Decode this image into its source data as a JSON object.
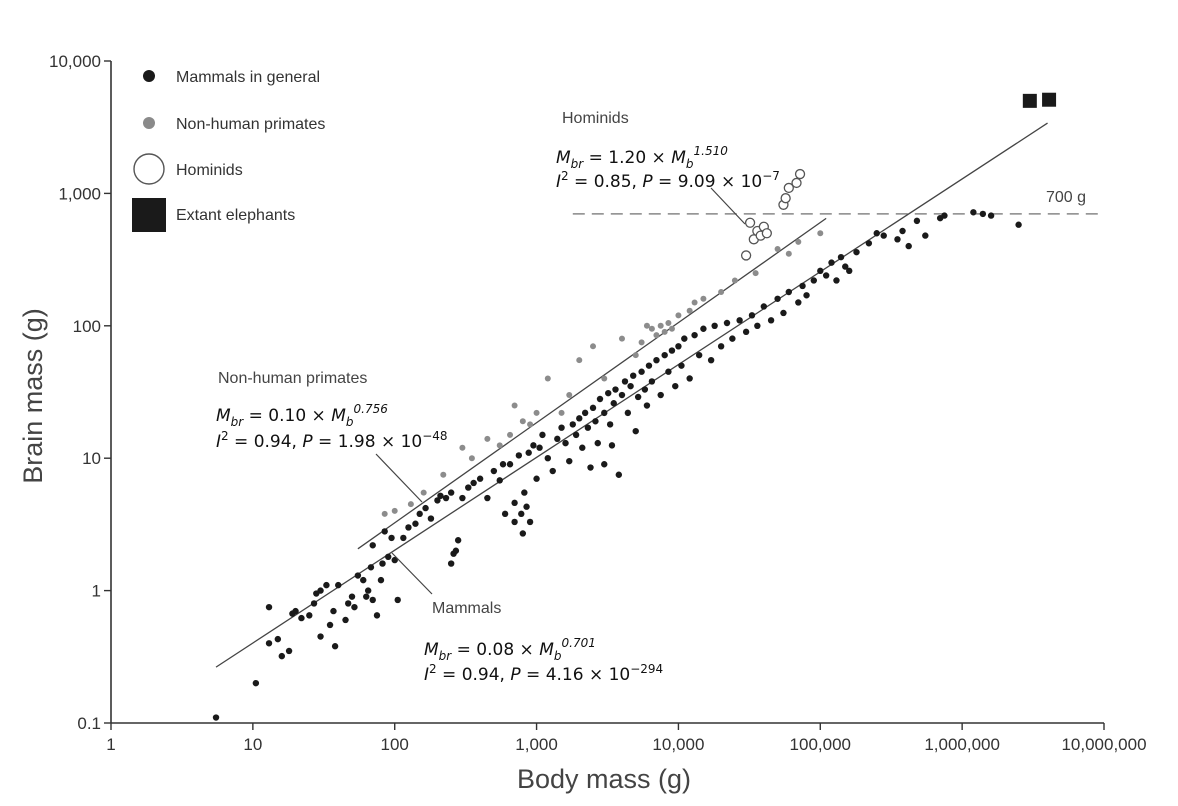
{
  "chart_data": {
    "type": "scatter",
    "x_scale": "log",
    "y_scale": "log",
    "xlabel": "Body mass (g)",
    "ylabel": "Brain mass (g)",
    "xlim": [
      1,
      10000000
    ],
    "ylim": [
      0.1,
      10000
    ],
    "x_ticks": [
      1,
      10,
      100,
      1000,
      10000,
      100000,
      1000000,
      10000000
    ],
    "x_tick_labels": [
      "1",
      "10",
      "100",
      "1,000",
      "10,000",
      "100,000",
      "1,000,000",
      "10,000,000"
    ],
    "y_ticks": [
      0.1,
      1,
      10,
      100,
      1000,
      10000
    ],
    "y_tick_labels": [
      "0.1",
      "1",
      "10",
      "100",
      "1,000",
      "10,000"
    ],
    "legend": [
      {
        "key": "mammals",
        "label": "Mammals in general",
        "marker": "filled-circle",
        "color": "#1a1a1a"
      },
      {
        "key": "primates",
        "label": "Non-human primates",
        "marker": "filled-circle",
        "color": "#8a8a8a"
      },
      {
        "key": "hominids",
        "label": "Hominids",
        "marker": "open-circle",
        "color": "#555555"
      },
      {
        "key": "elephants",
        "label": "Extant elephants",
        "marker": "filled-square",
        "color": "#1a1a1a"
      }
    ],
    "reference_line": {
      "y": 700,
      "label": "700 g",
      "style": "dashed",
      "x_range": [
        1800,
        10000000
      ]
    },
    "fits": [
      {
        "name": "Mammals",
        "a": 0.08,
        "b": 0.701,
        "x_range": [
          5.5,
          4000000
        ]
      },
      {
        "name": "Non-human primates",
        "a": 0.1,
        "b": 0.756,
        "x_range": [
          55,
          110000
        ]
      },
      {
        "name": "Hominids",
        "a": 1.2,
        "b": 1.51,
        "x_range": [
          30000,
          75000
        ]
      }
    ],
    "annotations": {
      "hominids": {
        "title": "Hominids",
        "eq_prefix": "M",
        "eq_sub": "br",
        "eq_coef": " = 1.20 × ",
        "eq_var": "M",
        "eq_var_sub": "b",
        "eq_exp": "1.510",
        "stat_i": "I",
        "stat_i_exp": "2",
        "stat_rest": " = 0.85, ",
        "stat_p": "P",
        "stat_p_val": " = 9.09 × 10",
        "stat_p_exp": "−7"
      },
      "primates": {
        "title": "Non-human primates",
        "eq_prefix": "M",
        "eq_sub": "br",
        "eq_coef": " = 0.10 × ",
        "eq_var": "M",
        "eq_var_sub": "b",
        "eq_exp": "0.756",
        "stat_i": "I",
        "stat_i_exp": "2",
        "stat_rest": " = 0.94, ",
        "stat_p": "P",
        "stat_p_val": " = 1.98 × 10",
        "stat_p_exp": "−48"
      },
      "mammals": {
        "title": "Mammals",
        "eq_prefix": "M",
        "eq_sub": "br",
        "eq_coef": " = 0.08 × ",
        "eq_var": "M",
        "eq_var_sub": "b",
        "eq_exp": "0.701",
        "stat_i": "I",
        "stat_i_exp": "2",
        "stat_rest": " = 0.94, ",
        "stat_p": "P",
        "stat_p_val": " = 4.16 × 10",
        "stat_p_exp": "−294"
      }
    },
    "series": [
      {
        "name": "Mammals in general",
        "points": [
          [
            5.5,
            0.11
          ],
          [
            10.5,
            0.2
          ],
          [
            13,
            0.75
          ],
          [
            13,
            0.4
          ],
          [
            15,
            0.43
          ],
          [
            16,
            0.32
          ],
          [
            18,
            0.35
          ],
          [
            19,
            0.67
          ],
          [
            20,
            0.7
          ],
          [
            22,
            0.62
          ],
          [
            25,
            0.65
          ],
          [
            27,
            0.8
          ],
          [
            28,
            0.95
          ],
          [
            30,
            0.45
          ],
          [
            30,
            1.0
          ],
          [
            33,
            1.1
          ],
          [
            35,
            0.55
          ],
          [
            37,
            0.7
          ],
          [
            38,
            0.38
          ],
          [
            40,
            1.1
          ],
          [
            45,
            0.6
          ],
          [
            47,
            0.8
          ],
          [
            50,
            0.9
          ],
          [
            52,
            0.75
          ],
          [
            55,
            1.3
          ],
          [
            60,
            1.2
          ],
          [
            63,
            0.9
          ],
          [
            65,
            1.0
          ],
          [
            68,
            1.5
          ],
          [
            70,
            0.85
          ],
          [
            70,
            2.2
          ],
          [
            75,
            0.65
          ],
          [
            80,
            1.2
          ],
          [
            82,
            1.6
          ],
          [
            85,
            2.8
          ],
          [
            90,
            1.8
          ],
          [
            95,
            2.5
          ],
          [
            100,
            1.7
          ],
          [
            105,
            0.85
          ],
          [
            115,
            2.5
          ],
          [
            125,
            3.0
          ],
          [
            140,
            3.2
          ],
          [
            150,
            3.8
          ],
          [
            165,
            4.2
          ],
          [
            180,
            3.5
          ],
          [
            200,
            4.8
          ],
          [
            210,
            5.2
          ],
          [
            230,
            5.0
          ],
          [
            250,
            1.6
          ],
          [
            250,
            5.5
          ],
          [
            260,
            1.9
          ],
          [
            270,
            2.0
          ],
          [
            280,
            2.4
          ],
          [
            300,
            5.0
          ],
          [
            330,
            6.0
          ],
          [
            360,
            6.5
          ],
          [
            400,
            7.0
          ],
          [
            450,
            5.0
          ],
          [
            500,
            8.0
          ],
          [
            550,
            6.8
          ],
          [
            580,
            9.0
          ],
          [
            600,
            3.8
          ],
          [
            650,
            9.0
          ],
          [
            700,
            3.3
          ],
          [
            700,
            4.6
          ],
          [
            750,
            10.5
          ],
          [
            780,
            3.8
          ],
          [
            800,
            2.7
          ],
          [
            820,
            5.5
          ],
          [
            850,
            4.3
          ],
          [
            880,
            11.0
          ],
          [
            900,
            3.3
          ],
          [
            950,
            12.5
          ],
          [
            1000,
            7.0
          ],
          [
            1050,
            12.0
          ],
          [
            1100,
            15.0
          ],
          [
            1200,
            10.0
          ],
          [
            1300,
            8.0
          ],
          [
            1400,
            14.0
          ],
          [
            1500,
            17.0
          ],
          [
            1600,
            13.0
          ],
          [
            1700,
            9.5
          ],
          [
            1800,
            18.0
          ],
          [
            1900,
            15.0
          ],
          [
            2000,
            20.0
          ],
          [
            2100,
            12.0
          ],
          [
            2200,
            22.0
          ],
          [
            2300,
            17.0
          ],
          [
            2400,
            8.5
          ],
          [
            2500,
            24.0
          ],
          [
            2600,
            19.0
          ],
          [
            2700,
            13.0
          ],
          [
            2800,
            28.0
          ],
          [
            3000,
            22.0
          ],
          [
            3000,
            9.0
          ],
          [
            3200,
            31.0
          ],
          [
            3300,
            18.0
          ],
          [
            3400,
            12.5
          ],
          [
            3500,
            26.0
          ],
          [
            3600,
            33.0
          ],
          [
            3800,
            7.5
          ],
          [
            4000,
            30.0
          ],
          [
            4200,
            38.0
          ],
          [
            4400,
            22.0
          ],
          [
            4600,
            35.0
          ],
          [
            4800,
            42.0
          ],
          [
            5000,
            16.0
          ],
          [
            5200,
            29.0
          ],
          [
            5500,
            45.0
          ],
          [
            5800,
            33.0
          ],
          [
            6000,
            25.0
          ],
          [
            6200,
            50.0
          ],
          [
            6500,
            38.0
          ],
          [
            7000,
            55.0
          ],
          [
            7500,
            30.0
          ],
          [
            8000,
            60.0
          ],
          [
            8500,
            45.0
          ],
          [
            9000,
            65.0
          ],
          [
            9500,
            35.0
          ],
          [
            10000,
            70.0
          ],
          [
            10500,
            50.0
          ],
          [
            11000,
            80.0
          ],
          [
            12000,
            40.0
          ],
          [
            13000,
            85.0
          ],
          [
            14000,
            60.0
          ],
          [
            15000,
            95.0
          ],
          [
            17000,
            55.0
          ],
          [
            18000,
            100.0
          ],
          [
            20000,
            70.0
          ],
          [
            22000,
            105.0
          ],
          [
            24000,
            80.0
          ],
          [
            27000,
            110.0
          ],
          [
            30000,
            90.0
          ],
          [
            33000,
            120.0
          ],
          [
            36000,
            100.0
          ],
          [
            40000,
            140.0
          ],
          [
            45000,
            110.0
          ],
          [
            50000,
            160.0
          ],
          [
            55000,
            125.0
          ],
          [
            60000,
            180.0
          ],
          [
            70000,
            150.0
          ],
          [
            75000,
            200.0
          ],
          [
            80000,
            170.0
          ],
          [
            90000,
            220.0
          ],
          [
            100000,
            260.0
          ],
          [
            110000,
            240.0
          ],
          [
            120000,
            300.0
          ],
          [
            130000,
            220.0
          ],
          [
            140000,
            330.0
          ],
          [
            150000,
            280.0
          ],
          [
            160000,
            260.0
          ],
          [
            180000,
            360.0
          ],
          [
            220000,
            420.0
          ],
          [
            250000,
            500.0
          ],
          [
            280000,
            480.0
          ],
          [
            350000,
            450.0
          ],
          [
            380000,
            520.0
          ],
          [
            420000,
            400.0
          ],
          [
            480000,
            620.0
          ],
          [
            550000,
            480.0
          ],
          [
            700000,
            650.0
          ],
          [
            750000,
            680.0
          ],
          [
            1200000,
            720.0
          ],
          [
            1400000,
            700.0
          ],
          [
            1600000,
            680.0
          ],
          [
            2500000,
            580.0
          ]
        ]
      },
      {
        "name": "Non-human primates",
        "points": [
          [
            85,
            3.8
          ],
          [
            100,
            4.0
          ],
          [
            130,
            4.5
          ],
          [
            160,
            5.5
          ],
          [
            220,
            7.5
          ],
          [
            300,
            12.0
          ],
          [
            350,
            10.0
          ],
          [
            450,
            14.0
          ],
          [
            550,
            12.5
          ],
          [
            650,
            15.0
          ],
          [
            700,
            25.0
          ],
          [
            800,
            19.0
          ],
          [
            900,
            18.0
          ],
          [
            1000,
            22.0
          ],
          [
            1200,
            40.0
          ],
          [
            1500,
            22.0
          ],
          [
            1700,
            30.0
          ],
          [
            2000,
            55.0
          ],
          [
            2500,
            70.0
          ],
          [
            3000,
            40.0
          ],
          [
            4000,
            80.0
          ],
          [
            5000,
            60.0
          ],
          [
            5500,
            75.0
          ],
          [
            6000,
            100.0
          ],
          [
            6500,
            95.0
          ],
          [
            7000,
            85.0
          ],
          [
            7500,
            100.0
          ],
          [
            8000,
            90.0
          ],
          [
            8500,
            105.0
          ],
          [
            9000,
            95.0
          ],
          [
            10000,
            120.0
          ],
          [
            12000,
            130.0
          ],
          [
            13000,
            150.0
          ],
          [
            15000,
            160.0
          ],
          [
            20000,
            180.0
          ],
          [
            25000,
            220.0
          ],
          [
            35000,
            250.0
          ],
          [
            50000,
            380.0
          ],
          [
            60000,
            350.0
          ],
          [
            70000,
            430.0
          ],
          [
            100000,
            500.0
          ]
        ]
      },
      {
        "name": "Hominids",
        "points": [
          [
            30000,
            340
          ],
          [
            32000,
            600
          ],
          [
            34000,
            450
          ],
          [
            36000,
            520
          ],
          [
            38000,
            480
          ],
          [
            40000,
            560
          ],
          [
            42000,
            500
          ],
          [
            55000,
            820
          ],
          [
            57000,
            920
          ],
          [
            60000,
            1100
          ],
          [
            68000,
            1200
          ],
          [
            72000,
            1400
          ]
        ]
      },
      {
        "name": "Extant elephants",
        "points": [
          [
            3000000,
            5000
          ],
          [
            4100000,
            5100
          ]
        ]
      }
    ]
  }
}
